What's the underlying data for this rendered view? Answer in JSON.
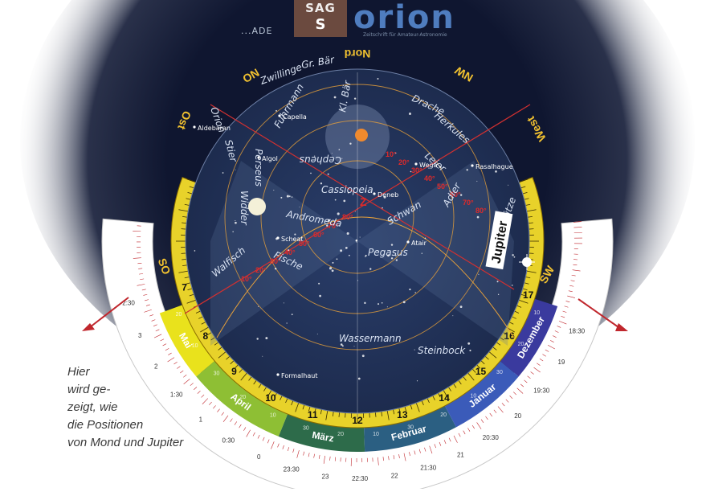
{
  "header": {
    "tag": "...ADE",
    "logo_sag_top": "SAG",
    "logo_sag_bottom": "S",
    "logo_orion": "orion",
    "logo_orion_sub": "Zeitschrift für Amateur-Astronomie"
  },
  "directions": [
    {
      "id": "nord",
      "label": "Nord"
    },
    {
      "id": "nw",
      "label": "NW"
    },
    {
      "id": "no",
      "label": "NO"
    },
    {
      "id": "west",
      "label": "West"
    },
    {
      "id": "ost",
      "label": "Ost"
    },
    {
      "id": "sw",
      "label": "SW"
    },
    {
      "id": "so",
      "label": "SO"
    }
  ],
  "constellations": [
    "Zwillinge",
    "Gr. Bär",
    "Kl. Bär",
    "Drache",
    "Herkules",
    "Cepheus",
    "Fuhrmann",
    "Perseus",
    "Stier",
    "Orion",
    "Cassiopeia",
    "Andromeda",
    "Widder",
    "Schwan",
    "Leier",
    "Adler",
    "Pegasus",
    "Fische",
    "Walfisch",
    "Wassermann",
    "Steinbock",
    "Schütze"
  ],
  "stars": [
    "Capella",
    "Aldebaran",
    "Algol",
    "Deneb",
    "Wega",
    "Rasalhague",
    "Atair",
    "Scheat",
    "Formalhaut"
  ],
  "planets": {
    "jupiter_label": "Jupiter"
  },
  "altitudes": [
    "10°",
    "20°",
    "30°",
    "40°",
    "50°",
    "60°",
    "70°",
    "80°"
  ],
  "zenith": "Z",
  "hours": [
    "8",
    "9",
    "10",
    "11",
    "12",
    "13",
    "14",
    "15",
    "16",
    "17"
  ],
  "hours_upper_left": [
    "7"
  ],
  "months": [
    {
      "label": "Mai",
      "color": "#e9e21c"
    },
    {
      "label": "April",
      "color": "#8ebf34"
    },
    {
      "label": "März",
      "color": "#2d6b4a"
    },
    {
      "label": "Februar",
      "color": "#2b5f82"
    },
    {
      "label": "Januar",
      "color": "#3b5bb9"
    },
    {
      "label": "Dezember",
      "color": "#3a3a9e"
    }
  ],
  "month_day_ticks": [
    "20",
    "10",
    "30",
    "20",
    "10",
    "30",
    "20",
    "10",
    "30",
    "20",
    "10",
    "30",
    "20",
    "10"
  ],
  "clock_labels": [
    "2:30",
    "3",
    "2",
    "1:30",
    "1",
    "0:30",
    "0",
    "23:30",
    "23",
    "22:30",
    "22",
    "21:30",
    "21",
    "20:30",
    "20",
    "19:30",
    "19",
    "18:30"
  ],
  "caption": [
    "Hier",
    "wird ge-",
    "zeigt, wie",
    "die Positionen",
    "von Mond und Jupiter"
  ]
}
